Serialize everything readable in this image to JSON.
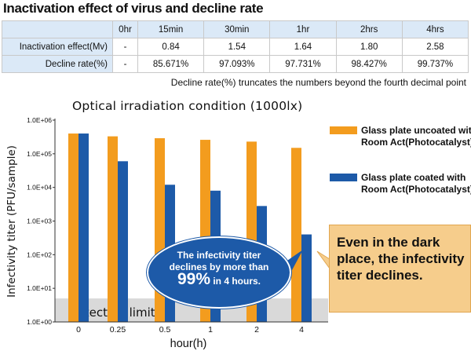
{
  "page_title": "Inactivation effect of virus and decline rate",
  "table": {
    "headers": [
      "",
      "0hr",
      "15min",
      "30min",
      "1hr",
      "2hrs",
      "4hrs"
    ],
    "rows": [
      {
        "label": "Inactivation effect(Mv)",
        "values": [
          "-",
          "0.84",
          "1.54",
          "1.64",
          "1.80",
          "2.58"
        ]
      },
      {
        "label": "Decline rate(%)",
        "values": [
          "-",
          "85.671%",
          "97.093%",
          "97.731%",
          "98.427%",
          "99.737%"
        ]
      }
    ]
  },
  "footnote": "Decline rate(%) truncates the numbers beyond the fourth decimal point",
  "chart_data": {
    "type": "bar",
    "title": "Optical irradiation condition (1000lx)",
    "xlabel": "hour(h)",
    "ylabel": "Infectivity titer (PFU/sample)",
    "yscale": "log",
    "ylim": [
      1,
      1000000
    ],
    "yticks": [
      "1.0E+00",
      "1.0E+01",
      "1.0E+02",
      "1.0E+03",
      "1.0E+04",
      "1.0E+05",
      "1.0E+06"
    ],
    "categories": [
      "0",
      "0.25",
      "0.5",
      "1",
      "2",
      "4"
    ],
    "series": [
      {
        "name": "Glass plate uncoated with Room Act(Photocatalyst)",
        "color": "#f39c1e",
        "values": [
          400000,
          330000,
          290000,
          260000,
          230000,
          150000
        ]
      },
      {
        "name": "Glass plate coated with Room Act(Photocatalyst)",
        "color": "#1d5aa8",
        "values": [
          400000,
          60000,
          12000,
          8000,
          2800,
          400
        ]
      }
    ],
    "detection_limit_label": "Detection limit",
    "detection_limit_value": 5,
    "grid": false,
    "legend_position": "right"
  },
  "callouts": {
    "bubble_line1": "The infectivity titer",
    "bubble_line2": "declines by more than",
    "bubble_big": "99%",
    "bubble_after": " in 4 hours.",
    "note": "Even in the dark place, the infectivity titer declines."
  }
}
